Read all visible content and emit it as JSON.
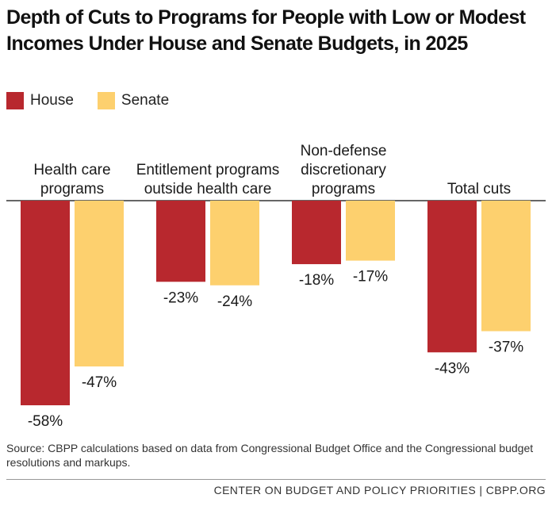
{
  "title_line1": "Depth of Cuts to Programs for People with Low or Modest",
  "title_line2": "Incomes Under House and Senate Budgets, in 2025",
  "legend": [
    {
      "label": "House",
      "color": "#b8282e"
    },
    {
      "label": "Senate",
      "color": "#fdd06e"
    }
  ],
  "chart_data": {
    "type": "bar",
    "title": "Depth of Cuts to Programs for People with Low or Modest Incomes Under House and Senate Budgets, in 2025",
    "categories": [
      [
        "Health care",
        "programs"
      ],
      [
        "Entitlement programs",
        "outside health care"
      ],
      [
        "Non-defense",
        "discretionary",
        "programs"
      ],
      [
        "Total cuts"
      ]
    ],
    "series": [
      {
        "name": "House",
        "color": "#b8282e",
        "values": [
          -58,
          -23,
          -18,
          -43
        ],
        "labels": [
          "-58%",
          "-23%",
          "-18%",
          "-43%"
        ]
      },
      {
        "name": "Senate",
        "color": "#fdd06e",
        "values": [
          -47,
          -24,
          -17,
          -37
        ],
        "labels": [
          "-47%",
          "-24%",
          "-17%",
          "-37%"
        ]
      }
    ],
    "ylim": [
      -60,
      0
    ],
    "xlabel": "",
    "ylabel": ""
  },
  "source": "Source: CBPP calculations based on data from Congressional Budget Office and the Congressional budget resolutions and markups.",
  "footer": "CENTER ON BUDGET AND POLICY PRIORITIES | CBPP.ORG"
}
